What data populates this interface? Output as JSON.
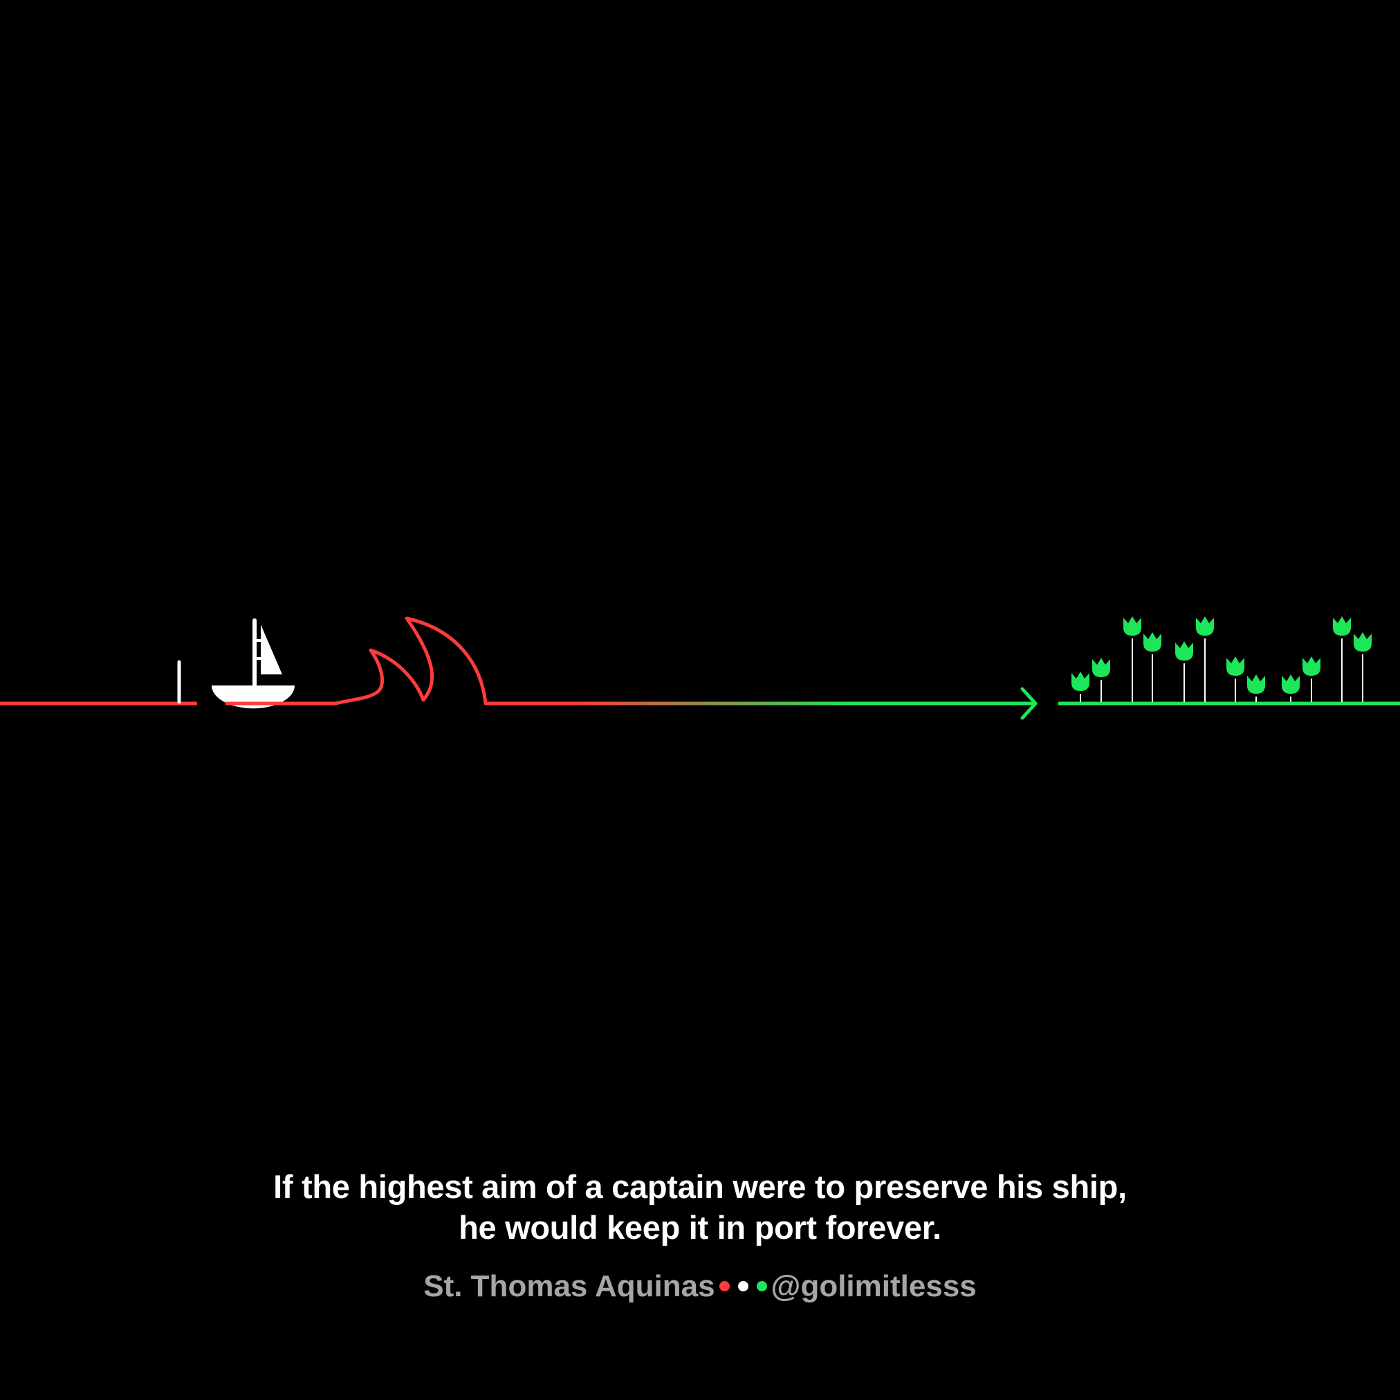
{
  "quote": {
    "line1": "If the highest aim of a captain were to preserve his ship,",
    "line2": "he would keep it in port forever."
  },
  "credit": {
    "author": "St. Thomas Aquinas",
    "handle": "@golimitlesss"
  },
  "colors": {
    "background": "#000000",
    "danger_red": "#ff3b3b",
    "growth_green": "#1ee65a",
    "white": "#ffffff",
    "muted": "#a6a6a6"
  },
  "icons": [
    "mooring-post-icon",
    "sailboat-icon",
    "wave-icon",
    "arrow-icon",
    "tulip-icon"
  ]
}
